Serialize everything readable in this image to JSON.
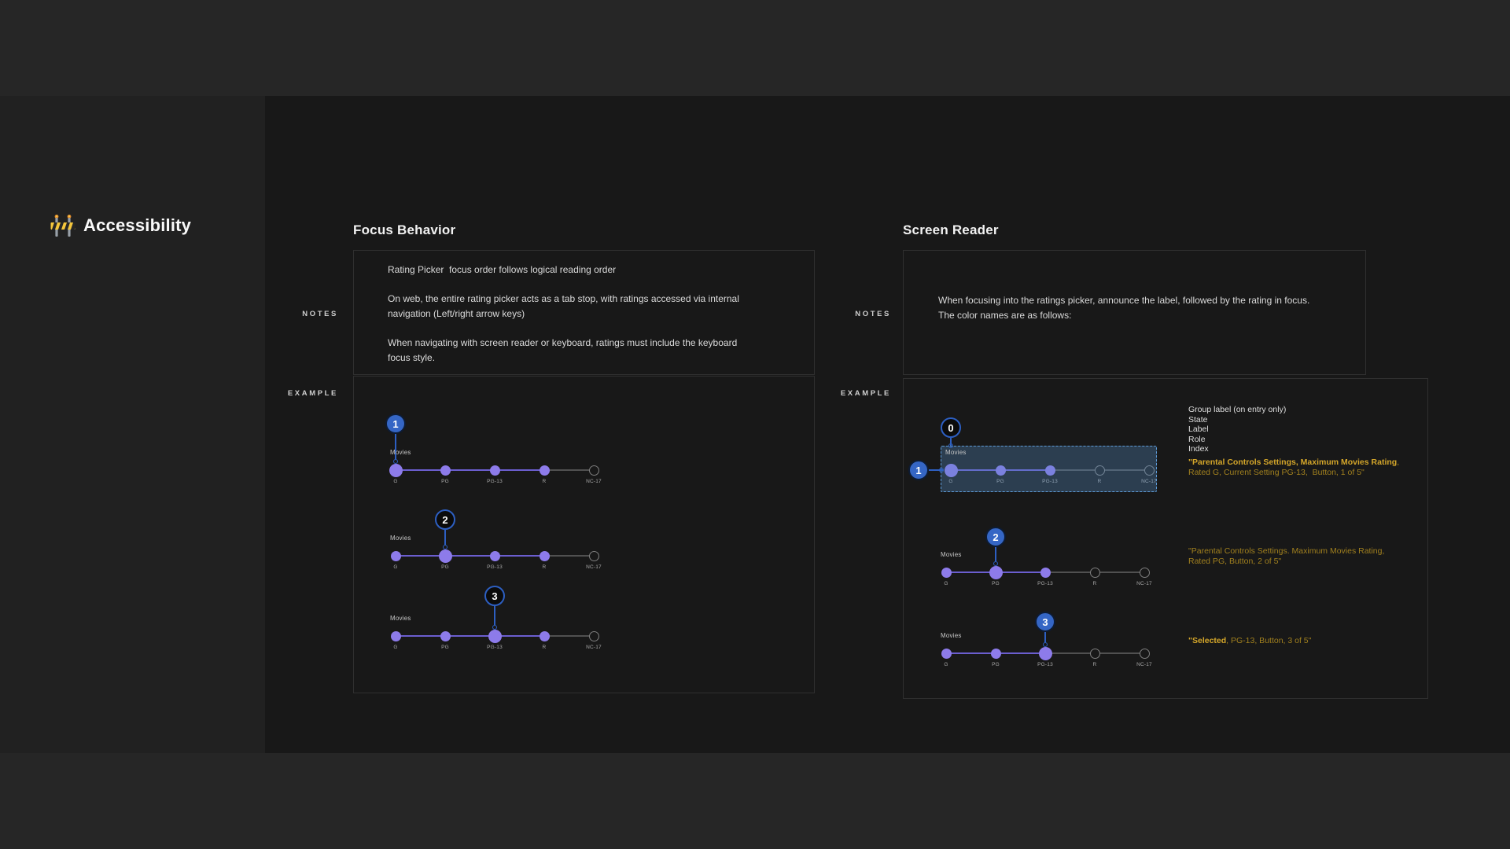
{
  "brand": {
    "title": "Accessibility",
    "icon": "construction-barricade-icon"
  },
  "labels": {
    "notes": "NOTES",
    "example": "EXAMPLE"
  },
  "picker": {
    "group_label": "Movies",
    "ratings": [
      "G",
      "PG",
      "PG-13",
      "R",
      "NC-17"
    ]
  },
  "sections": {
    "focus": {
      "heading": "Focus Behavior",
      "notes": [
        "Rating Picker  focus order follows logical reading order",
        "On web, the entire rating picker acts as a tab stop, with ratings accessed via internal navigation (Left/right arrow keys)",
        "When navigating with screen reader or keyboard, ratings must include the keyboard focus style."
      ],
      "pickers": [
        {
          "callout_number": "1",
          "callout_style": "filled",
          "focus_index": 0,
          "filled_until": 3
        },
        {
          "callout_number": "2",
          "callout_style": "ring",
          "focus_index": 1,
          "filled_until": 3
        },
        {
          "callout_number": "3",
          "callout_style": "ring",
          "focus_index": 2,
          "filled_until": 3
        }
      ]
    },
    "screenreader": {
      "heading": "Screen Reader",
      "notes": [
        "When focusing into the ratings picker, announce the label, followed by the rating in focus. The color names are as follows:"
      ],
      "pickers": [
        {
          "callout_number": "1",
          "callout_style": "filled",
          "callout_left": true,
          "highlight": true,
          "group_callout": {
            "number": "0",
            "style": "ring"
          },
          "focus_index": 0,
          "filled_until": 2
        },
        {
          "callout_number": "2",
          "callout_style": "filled",
          "focus_index": 1,
          "filled_until": 2
        },
        {
          "callout_number": "3",
          "callout_style": "filled",
          "focus_index": 2,
          "filled_until": 2
        }
      ],
      "legend": [
        "Group label (on entry only)",
        "State",
        "Label",
        "Role",
        "Index"
      ],
      "announcements": [
        {
          "parts": [
            {
              "text": "\"Parental Controls Settings, Maximum Movies Rating",
              "bold": true
            },
            {
              "text": ", Rated G, Current Setting PG-13,  Button, 1 of 5\"",
              "bold": false
            }
          ]
        },
        {
          "parts": [
            {
              "text": "\"Parental Controls Settings. Maximum Movies Rating, Rated PG, Button, 2 of 5\"",
              "bold": false
            }
          ]
        },
        {
          "parts": [
            {
              "text": "\"Selected",
              "bold": true
            },
            {
              "text": ", PG-13, Button, 3 of 5\"",
              "bold": false
            }
          ]
        }
      ]
    }
  },
  "colors": {
    "band": "#262626",
    "left_panel": "#212121",
    "main_panel": "#181818",
    "box_border": "#2f2f2f",
    "accent_blue": "#3566c5",
    "callout_ring_blue": "#2d5fc2",
    "dot_purple": "#8d7bea",
    "line_purple": "#6b5ecf",
    "line_gray": "#505050",
    "outline_dot": "#7f7f7f",
    "highlight_fill": "rgba(86,144,198,0.32)",
    "highlight_border": "#5d9bd8",
    "gold_bright": "#d4a62a",
    "gold_dim": "#a1801e"
  }
}
